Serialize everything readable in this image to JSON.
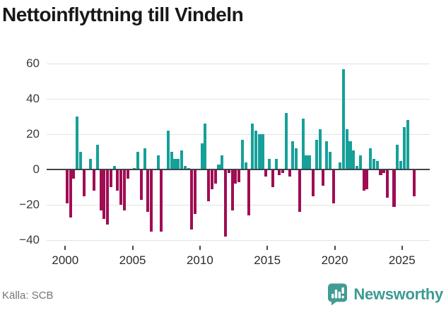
{
  "title": "Nettoinflyttning till Vindeln",
  "source": {
    "label": "Källa: SCB"
  },
  "branding": {
    "name": "Newsworthy",
    "icon": "bar-chart-badge-icon"
  },
  "colors": {
    "positive": "#16a09a",
    "negative": "#a00d53",
    "gridline": "#e3e3e3",
    "zero_line": "#3f434c",
    "brand_teal": "#3d9b94",
    "title_text": "#181818",
    "axis_text": "#3b3b3b",
    "source_text": "#757575"
  },
  "chart_data": {
    "type": "bar",
    "title": "Nettoinflyttning till Vindeln",
    "frequency": "quarterly",
    "start_period": "2000-Q1",
    "end_period": "2025-Q4",
    "xlabel": "",
    "ylabel": "",
    "y_ticks": [
      60,
      40,
      20,
      0,
      -20,
      -40
    ],
    "ylim": [
      -45,
      66
    ],
    "x_tick_years": [
      2000,
      2005,
      2010,
      2015,
      2020,
      2025
    ],
    "x_tick_labels": [
      "2000",
      "2005",
      "2010",
      "2015",
      "2020",
      "2025"
    ],
    "grid": true,
    "legend": false,
    "positive_color": "#16a09a",
    "negative_color": "#a00d53",
    "values": [
      -19,
      -27,
      -5,
      30,
      10,
      -15,
      0,
      6,
      -12,
      14,
      -23,
      -28,
      -31,
      -10,
      2,
      -12,
      -20,
      -23,
      -5,
      0,
      1,
      10,
      -17,
      12,
      -24,
      -35,
      0,
      8,
      -35,
      0,
      22,
      10,
      6,
      6,
      11,
      2,
      1,
      -34,
      -25,
      0,
      15,
      26,
      -18,
      -11,
      -8,
      3,
      8,
      -38,
      -2,
      -23,
      -8,
      -7,
      17,
      4,
      -26,
      26,
      22,
      20,
      20,
      -4,
      6,
      -10,
      6,
      -3,
      -2,
      32,
      -4,
      16,
      12,
      -24,
      29,
      8,
      8,
      -15,
      17,
      23,
      -9,
      16,
      10,
      -19,
      0,
      4,
      57,
      23,
      16,
      11,
      2,
      8,
      -12,
      -11,
      12,
      6,
      5,
      -3,
      -2,
      -16,
      0,
      -21,
      14,
      5,
      24,
      28,
      0,
      -15
    ]
  }
}
